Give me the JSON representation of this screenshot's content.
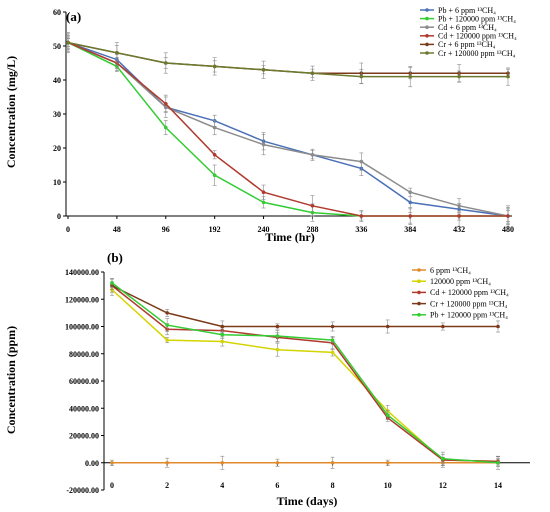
{
  "chart_data": [
    {
      "type": "line",
      "panel_label": "(a)",
      "xlabel": "Time (hr)",
      "ylabel": "Concentration (mg/L)",
      "categories": [
        "0",
        "48",
        "96",
        "192",
        "240",
        "288",
        "336",
        "384",
        "432",
        "480"
      ],
      "ylim": [
        0,
        60
      ],
      "yticks": [
        "0",
        "10",
        "20",
        "30",
        "40",
        "50",
        "60"
      ],
      "legend_position": "top-right",
      "series": [
        {
          "name": "Pb + 6 ppm ¹³CH₄",
          "color": "#4a70b8",
          "values": [
            51,
            46,
            32,
            28,
            22,
            18,
            14,
            4,
            2,
            0
          ]
        },
        {
          "name": "Pb + 120000 ppm ¹³CH₄",
          "color": "#33cc33",
          "values": [
            51,
            44,
            26,
            12,
            4,
            1,
            0,
            0,
            0,
            0
          ]
        },
        {
          "name": "Cd + 6 ppm ¹³CH₄",
          "color": "#8c8c8c",
          "values": [
            51,
            45,
            32,
            26,
            21,
            18,
            16,
            7,
            3,
            0
          ]
        },
        {
          "name": "Cd + 120000 ppm ¹³CH₄",
          "color": "#b03a2e",
          "values": [
            51,
            45,
            33,
            18,
            7,
            3,
            0,
            0,
            0,
            0
          ]
        },
        {
          "name": "Cr + 6 ppm ¹³CH₄",
          "color": "#7b3b1b",
          "values": [
            51,
            48,
            45,
            44,
            43,
            42,
            42,
            42,
            42,
            42
          ]
        },
        {
          "name": "Cr + 120000 ppm ¹³CH₄",
          "color": "#6b7a2e",
          "values": [
            51,
            48,
            45,
            44,
            43,
            42,
            41,
            41,
            41,
            41
          ]
        }
      ]
    },
    {
      "type": "line",
      "panel_label": "(b)",
      "xlabel": "Time (days)",
      "ylabel": "Concentration (ppm)",
      "categories": [
        "0",
        "2",
        "4",
        "6",
        "8",
        "10",
        "12",
        "14"
      ],
      "ylim": [
        -20000,
        140000
      ],
      "yticks": [
        "-20000.00",
        "0.00",
        "20000.00",
        "40000.00",
        "60000.00",
        "80000.00",
        "100000.00",
        "120000.00",
        "140000.00"
      ],
      "legend_position": "top-right",
      "series": [
        {
          "name": "6 ppm ¹³CH₄",
          "color": "#e08a2c",
          "values": [
            0,
            0,
            0,
            0,
            0,
            0,
            0,
            0
          ]
        },
        {
          "name": "120000 ppm ¹³CH₄",
          "color": "#d4d400",
          "values": [
            127000,
            90000,
            89000,
            83000,
            81000,
            38000,
            2000,
            1000
          ]
        },
        {
          "name": "Cd + 120000 ppm ¹³CH₄",
          "color": "#b03a2e",
          "values": [
            130000,
            98000,
            97000,
            92000,
            88000,
            33000,
            2000,
            1000
          ]
        },
        {
          "name": "Cr + 120000 ppm ¹³CH₄",
          "color": "#7b3b1b",
          "values": [
            130000,
            110000,
            100000,
            100000,
            100000,
            100000,
            100000,
            100000
          ]
        },
        {
          "name": "Pb + 120000 ppm ¹³CH₄",
          "color": "#33cc33",
          "values": [
            132000,
            101000,
            94000,
            93000,
            90000,
            35000,
            3000,
            0
          ]
        }
      ]
    }
  ]
}
